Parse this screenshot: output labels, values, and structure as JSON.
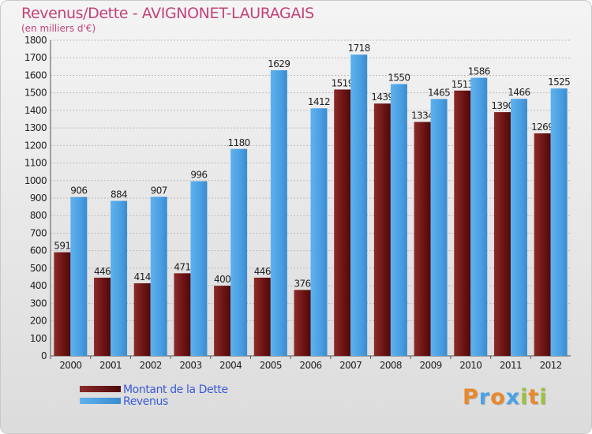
{
  "chart_data": {
    "type": "bar",
    "title": "Revenus/Dette - AVIGNONET-LAURAGAIS",
    "subtitle": "(en milliers d'€)",
    "categories": [
      "2000",
      "2001",
      "2002",
      "2003",
      "2004",
      "2005",
      "2006",
      "2007",
      "2008",
      "2009",
      "2010",
      "2011",
      "2012"
    ],
    "series": [
      {
        "name": "Montant de la Dette",
        "color": "#7a1a1a",
        "values": [
          591,
          446,
          414,
          471,
          400,
          446,
          376,
          1519,
          1439,
          1334,
          1513,
          1390,
          1269
        ]
      },
      {
        "name": "Revenus",
        "color": "#4aa3e6",
        "values": [
          906,
          884,
          907,
          996,
          1180,
          1629,
          1412,
          1718,
          1550,
          1465,
          1586,
          1466,
          1525
        ]
      }
    ],
    "ylim": [
      0,
      1800
    ],
    "ytick_step": 100,
    "grid": true,
    "legend_position": "bottom-left"
  },
  "logo": {
    "letters": [
      "P",
      "r",
      "o",
      "x",
      "i",
      "t",
      "i"
    ],
    "colors": [
      "#e8892e",
      "#4aa3e6",
      "#e8892e",
      "#4aa3e6",
      "#9bc23c",
      "#e8892e",
      "#9bc23c"
    ]
  }
}
